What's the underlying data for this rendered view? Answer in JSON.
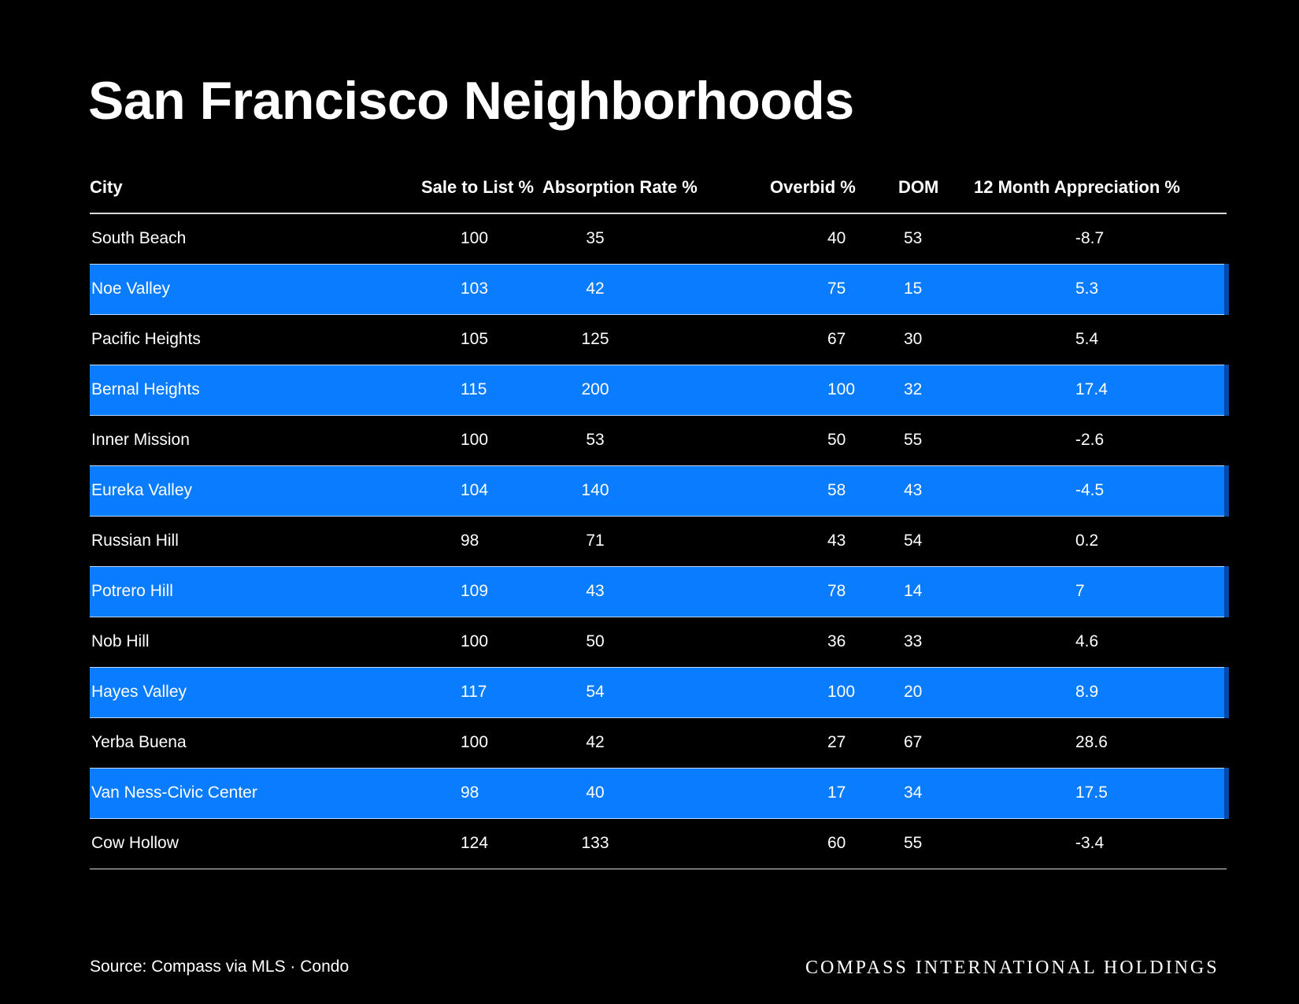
{
  "title": "San Francisco Neighborhoods",
  "table": {
    "headers": [
      "City",
      "Sale to List %",
      "Absorption Rate %",
      "Overbid %",
      "DOM",
      "12 Month Appreciation %"
    ],
    "rows": [
      [
        "South Beach",
        "100",
        "35",
        "40",
        "53",
        "-8.7"
      ],
      [
        "Noe Valley",
        "103",
        "42",
        "75",
        "15",
        "5.3"
      ],
      [
        "Pacific Heights",
        "105",
        "125",
        "67",
        "30",
        "5.4"
      ],
      [
        "Bernal Heights",
        "115",
        "200",
        "100",
        "32",
        "17.4"
      ],
      [
        "Inner Mission",
        "100",
        "53",
        "50",
        "55",
        "-2.6"
      ],
      [
        "Eureka Valley",
        "104",
        "140",
        "58",
        "43",
        "-4.5"
      ],
      [
        "Russian Hill",
        "98",
        "71",
        "43",
        "54",
        "0.2"
      ],
      [
        "Potrero Hill",
        "109",
        "43",
        "78",
        "14",
        "7"
      ],
      [
        "Nob Hill",
        "100",
        "50",
        "36",
        "33",
        "4.6"
      ],
      [
        "Hayes Valley",
        "117",
        "54",
        "100",
        "20",
        "8.9"
      ],
      [
        "Yerba Buena",
        "100",
        "42",
        "27",
        "67",
        "28.6"
      ],
      [
        "Van Ness-Civic Center",
        "98",
        "40",
        "17",
        "34",
        "17.5"
      ],
      [
        "Cow Hollow",
        "124",
        "133",
        "60",
        "55",
        "-3.4"
      ]
    ]
  },
  "footer": {
    "source": "Source: Compass via MLS · Condo",
    "brand": "COMPASS INTERNATIONAL HOLDINGS"
  },
  "colors": {
    "background": "#000000",
    "highlight_row": "#0a7cff",
    "text": "#ffffff"
  }
}
